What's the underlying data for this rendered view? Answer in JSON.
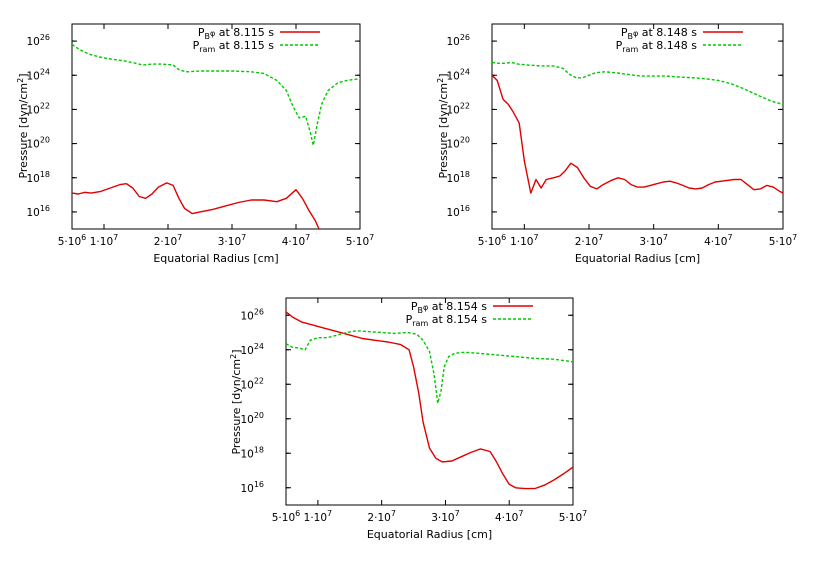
{
  "chart_data": [
    {
      "type": "line",
      "xlabel": "Equatorial Radius [cm]",
      "ylabel": "Pressure [dyn/cm",
      "ylabel_sup": "2",
      "ylabel_tail": "]",
      "xlim": [
        5000000,
        50000000
      ],
      "ylim_log10": [
        15,
        27
      ],
      "x_ticks": [
        {
          "value": 5000000,
          "mant": "5·10",
          "exp": "6"
        },
        {
          "value": 10000000,
          "mant": "1·10",
          "exp": "7"
        },
        {
          "value": 20000000,
          "mant": "2·10",
          "exp": "7"
        },
        {
          "value": 30000000,
          "mant": "3·10",
          "exp": "7"
        },
        {
          "value": 40000000,
          "mant": "4·10",
          "exp": "7"
        },
        {
          "value": 50000000,
          "mant": "5·10",
          "exp": "7"
        }
      ],
      "y_ticks": [
        {
          "log": 16,
          "base": "10",
          "exp": "16"
        },
        {
          "log": 18,
          "base": "10",
          "exp": "18"
        },
        {
          "log": 20,
          "base": "10",
          "exp": "20"
        },
        {
          "log": 22,
          "base": "10",
          "exp": "22"
        },
        {
          "log": 24,
          "base": "10",
          "exp": "24"
        },
        {
          "log": 26,
          "base": "10",
          "exp": "26"
        }
      ],
      "series": [
        {
          "name": "PBφ",
          "legend_main": "P",
          "legend_sub": "B",
          "legend_supsub": "φ",
          "legend_tail": " at 8.115 s",
          "color": "#e00000",
          "dash": "",
          "points": [
            [
              5.0,
              17.1
            ],
            [
              6.0,
              17.05
            ],
            [
              7.0,
              17.15
            ],
            [
              8.0,
              17.1
            ],
            [
              9.5,
              17.2
            ],
            [
              11.0,
              17.4
            ],
            [
              12.5,
              17.6
            ],
            [
              13.5,
              17.65
            ],
            [
              14.5,
              17.4
            ],
            [
              15.5,
              16.9
            ],
            [
              16.5,
              16.8
            ],
            [
              17.5,
              17.05
            ],
            [
              18.5,
              17.45
            ],
            [
              19.8,
              17.7
            ],
            [
              20.8,
              17.55
            ],
            [
              21.7,
              16.8
            ],
            [
              22.6,
              16.2
            ],
            [
              23.8,
              15.9
            ],
            [
              25.0,
              16.0
            ],
            [
              27.0,
              16.15
            ],
            [
              29.0,
              16.35
            ],
            [
              31.0,
              16.55
            ],
            [
              33.0,
              16.7
            ],
            [
              35.0,
              16.7
            ],
            [
              37.0,
              16.6
            ],
            [
              38.5,
              16.8
            ],
            [
              40.0,
              17.3
            ],
            [
              41.0,
              16.8
            ],
            [
              42.0,
              16.1
            ],
            [
              43.0,
              15.5
            ],
            [
              43.6,
              15.0
            ]
          ]
        },
        {
          "name": "Pram",
          "legend_main": "P",
          "legend_sub": "ram",
          "legend_supsub": "",
          "legend_tail": " at 8.115 s",
          "color": "#00c800",
          "dash": "3,2",
          "points": [
            [
              5.0,
              25.8
            ],
            [
              6.0,
              25.55
            ],
            [
              7.0,
              25.35
            ],
            [
              8.0,
              25.2
            ],
            [
              9.5,
              25.05
            ],
            [
              11.0,
              24.95
            ],
            [
              13.0,
              24.85
            ],
            [
              15.0,
              24.7
            ],
            [
              16.0,
              24.6
            ],
            [
              17.5,
              24.65
            ],
            [
              19.0,
              24.65
            ],
            [
              20.8,
              24.6
            ],
            [
              21.8,
              24.3
            ],
            [
              23.0,
              24.2
            ],
            [
              25.0,
              24.25
            ],
            [
              27.0,
              24.25
            ],
            [
              30.0,
              24.25
            ],
            [
              33.0,
              24.2
            ],
            [
              35.0,
              24.1
            ],
            [
              37.0,
              23.7
            ],
            [
              38.5,
              23.1
            ],
            [
              39.5,
              22.2
            ],
            [
              40.5,
              21.5
            ],
            [
              41.5,
              21.6
            ],
            [
              42.2,
              20.7
            ],
            [
              42.7,
              19.9
            ],
            [
              43.3,
              21.1
            ],
            [
              44.0,
              22.3
            ],
            [
              45.0,
              23.1
            ],
            [
              46.5,
              23.55
            ],
            [
              48.0,
              23.7
            ],
            [
              50.0,
              23.8
            ]
          ]
        }
      ]
    },
    {
      "type": "line",
      "xlabel": "Equatorial Radius [cm]",
      "ylabel": "Pressure [dyn/cm",
      "ylabel_sup": "2",
      "ylabel_tail": "]",
      "xlim": [
        5000000,
        50000000
      ],
      "ylim_log10": [
        15,
        27
      ],
      "x_ticks": [
        {
          "value": 5000000,
          "mant": "5·10",
          "exp": "6"
        },
        {
          "value": 10000000,
          "mant": "1·10",
          "exp": "7"
        },
        {
          "value": 20000000,
          "mant": "2·10",
          "exp": "7"
        },
        {
          "value": 30000000,
          "mant": "3·10",
          "exp": "7"
        },
        {
          "value": 40000000,
          "mant": "4·10",
          "exp": "7"
        },
        {
          "value": 50000000,
          "mant": "5·10",
          "exp": "7"
        }
      ],
      "y_ticks": [
        {
          "log": 16,
          "base": "10",
          "exp": "16"
        },
        {
          "log": 18,
          "base": "10",
          "exp": "18"
        },
        {
          "log": 20,
          "base": "10",
          "exp": "20"
        },
        {
          "log": 22,
          "base": "10",
          "exp": "22"
        },
        {
          "log": 24,
          "base": "10",
          "exp": "24"
        },
        {
          "log": 26,
          "base": "10",
          "exp": "26"
        }
      ],
      "series": [
        {
          "name": "PBφ",
          "legend_main": "P",
          "legend_sub": "B",
          "legend_supsub": "φ",
          "legend_tail": " at 8.148 s",
          "color": "#e00000",
          "dash": "",
          "points": [
            [
              5.0,
              24.0
            ],
            [
              5.8,
              23.7
            ],
            [
              6.7,
              22.6
            ],
            [
              7.5,
              22.3
            ],
            [
              8.2,
              21.9
            ],
            [
              9.2,
              21.2
            ],
            [
              10.0,
              19.0
            ],
            [
              11.0,
              17.1
            ],
            [
              11.8,
              17.9
            ],
            [
              12.6,
              17.4
            ],
            [
              13.4,
              17.9
            ],
            [
              14.5,
              18.0
            ],
            [
              15.5,
              18.1
            ],
            [
              16.3,
              18.4
            ],
            [
              17.2,
              18.85
            ],
            [
              18.2,
              18.6
            ],
            [
              19.2,
              18.0
            ],
            [
              20.2,
              17.5
            ],
            [
              21.2,
              17.35
            ],
            [
              22.2,
              17.6
            ],
            [
              23.5,
              17.85
            ],
            [
              24.5,
              18.0
            ],
            [
              25.5,
              17.9
            ],
            [
              26.5,
              17.6
            ],
            [
              27.5,
              17.45
            ],
            [
              28.5,
              17.45
            ],
            [
              29.5,
              17.55
            ],
            [
              30.5,
              17.65
            ],
            [
              31.5,
              17.75
            ],
            [
              32.5,
              17.8
            ],
            [
              33.5,
              17.7
            ],
            [
              34.5,
              17.55
            ],
            [
              35.5,
              17.4
            ],
            [
              36.5,
              17.35
            ],
            [
              37.5,
              17.4
            ],
            [
              38.5,
              17.6
            ],
            [
              39.5,
              17.75
            ],
            [
              40.5,
              17.8
            ],
            [
              41.5,
              17.85
            ],
            [
              42.5,
              17.9
            ],
            [
              43.5,
              17.9
            ],
            [
              44.5,
              17.6
            ],
            [
              45.5,
              17.3
            ],
            [
              46.5,
              17.35
            ],
            [
              47.5,
              17.55
            ],
            [
              48.5,
              17.45
            ],
            [
              49.5,
              17.2
            ],
            [
              50.0,
              17.1
            ]
          ]
        },
        {
          "name": "Pram",
          "legend_main": "P",
          "legend_sub": "ram",
          "legend_supsub": "",
          "legend_tail": " at 8.148 s",
          "color": "#00c800",
          "dash": "3,2",
          "points": [
            [
              5.0,
              24.75
            ],
            [
              6.0,
              24.7
            ],
            [
              7.0,
              24.7
            ],
            [
              8.0,
              24.75
            ],
            [
              9.0,
              24.65
            ],
            [
              10.5,
              24.6
            ],
            [
              12.5,
              24.55
            ],
            [
              14.5,
              24.55
            ],
            [
              16.0,
              24.4
            ],
            [
              17.0,
              24.05
            ],
            [
              18.0,
              23.85
            ],
            [
              19.0,
              23.85
            ],
            [
              20.0,
              24.0
            ],
            [
              21.0,
              24.15
            ],
            [
              22.5,
              24.2
            ],
            [
              24.0,
              24.15
            ],
            [
              26.0,
              24.05
            ],
            [
              28.0,
              23.95
            ],
            [
              30.0,
              23.95
            ],
            [
              32.0,
              23.95
            ],
            [
              34.0,
              23.9
            ],
            [
              36.0,
              23.85
            ],
            [
              38.0,
              23.8
            ],
            [
              40.0,
              23.7
            ],
            [
              42.0,
              23.5
            ],
            [
              44.0,
              23.2
            ],
            [
              46.0,
              22.85
            ],
            [
              47.5,
              22.6
            ],
            [
              48.5,
              22.45
            ],
            [
              50.0,
              22.3
            ]
          ]
        }
      ]
    },
    {
      "type": "line",
      "xlabel": "Equatorial Radius [cm]",
      "ylabel": "Pressure [dyn/cm",
      "ylabel_sup": "2",
      "ylabel_tail": "]",
      "xlim": [
        5000000,
        50000000
      ],
      "ylim_log10": [
        15,
        27
      ],
      "x_ticks": [
        {
          "value": 5000000,
          "mant": "5·10",
          "exp": "6"
        },
        {
          "value": 10000000,
          "mant": "1·10",
          "exp": "7"
        },
        {
          "value": 20000000,
          "mant": "2·10",
          "exp": "7"
        },
        {
          "value": 30000000,
          "mant": "3·10",
          "exp": "7"
        },
        {
          "value": 40000000,
          "mant": "4·10",
          "exp": "7"
        },
        {
          "value": 50000000,
          "mant": "5·10",
          "exp": "7"
        }
      ],
      "y_ticks": [
        {
          "log": 16,
          "base": "10",
          "exp": "16"
        },
        {
          "log": 18,
          "base": "10",
          "exp": "18"
        },
        {
          "log": 20,
          "base": "10",
          "exp": "20"
        },
        {
          "log": 22,
          "base": "10",
          "exp": "22"
        },
        {
          "log": 24,
          "base": "10",
          "exp": "24"
        },
        {
          "log": 26,
          "base": "10",
          "exp": "26"
        }
      ],
      "series": [
        {
          "name": "PBφ",
          "legend_main": "P",
          "legend_sub": "B",
          "legend_supsub": "φ",
          "legend_tail": " at 8.154 s",
          "color": "#e00000",
          "dash": "",
          "points": [
            [
              5.0,
              26.2
            ],
            [
              6.0,
              25.9
            ],
            [
              7.5,
              25.6
            ],
            [
              9.0,
              25.45
            ],
            [
              11.0,
              25.25
            ],
            [
              13.0,
              25.05
            ],
            [
              15.0,
              24.85
            ],
            [
              17.0,
              24.65
            ],
            [
              19.0,
              24.55
            ],
            [
              21.0,
              24.45
            ],
            [
              23.0,
              24.3
            ],
            [
              24.3,
              24.0
            ],
            [
              25.0,
              23.0
            ],
            [
              25.8,
              21.5
            ],
            [
              26.5,
              19.8
            ],
            [
              27.5,
              18.3
            ],
            [
              28.5,
              17.7
            ],
            [
              29.5,
              17.5
            ],
            [
              31.0,
              17.55
            ],
            [
              32.5,
              17.8
            ],
            [
              34.0,
              18.05
            ],
            [
              35.5,
              18.25
            ],
            [
              37.0,
              18.1
            ],
            [
              38.0,
              17.5
            ],
            [
              39.0,
              16.8
            ],
            [
              40.0,
              16.2
            ],
            [
              41.0,
              16.0
            ],
            [
              42.5,
              15.95
            ],
            [
              44.0,
              15.95
            ],
            [
              45.5,
              16.15
            ],
            [
              47.0,
              16.45
            ],
            [
              48.5,
              16.8
            ],
            [
              50.0,
              17.2
            ]
          ]
        },
        {
          "name": "Pram",
          "legend_main": "P",
          "legend_sub": "ram",
          "legend_supsub": "",
          "legend_tail": " at 8.154 s",
          "color": "#00c800",
          "dash": "3,2",
          "points": [
            [
              5.0,
              24.35
            ],
            [
              6.0,
              24.15
            ],
            [
              7.0,
              24.1
            ],
            [
              8.0,
              24.0
            ],
            [
              8.8,
              24.55
            ],
            [
              10.0,
              24.7
            ],
            [
              11.5,
              24.7
            ],
            [
              13.0,
              24.85
            ],
            [
              14.5,
              25.0
            ],
            [
              16.0,
              25.1
            ],
            [
              18.0,
              25.05
            ],
            [
              20.0,
              25.0
            ],
            [
              22.0,
              24.95
            ],
            [
              24.0,
              25.0
            ],
            [
              25.5,
              24.9
            ],
            [
              26.5,
              24.55
            ],
            [
              27.5,
              23.9
            ],
            [
              28.2,
              22.6
            ],
            [
              28.8,
              20.9
            ],
            [
              29.3,
              21.6
            ],
            [
              29.8,
              23.0
            ],
            [
              30.5,
              23.6
            ],
            [
              31.5,
              23.8
            ],
            [
              33.0,
              23.85
            ],
            [
              35.0,
              23.8
            ],
            [
              38.0,
              23.7
            ],
            [
              41.0,
              23.6
            ],
            [
              44.0,
              23.5
            ],
            [
              47.0,
              23.45
            ],
            [
              50.0,
              23.3
            ]
          ]
        }
      ]
    }
  ]
}
